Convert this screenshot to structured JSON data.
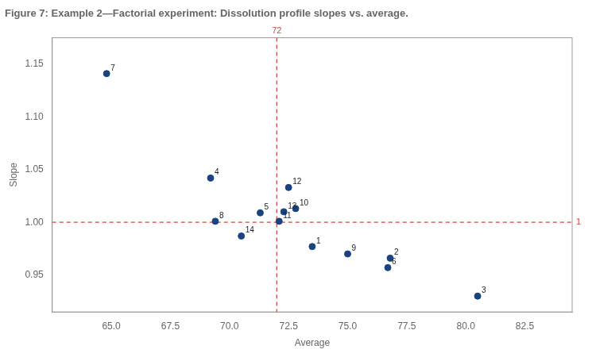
{
  "chart_data": {
    "type": "scatter",
    "title": "Figure 7: Example 2—Factorial experiment: Dissolution profile slopes vs. average.",
    "xlabel": "Average",
    "ylabel": "Slope",
    "x": [
      64.8,
      69.2,
      69.4,
      70.5,
      71.3,
      72.1,
      72.3,
      72.8,
      72.5,
      73.5,
      75.0,
      76.8,
      76.7,
      80.5
    ],
    "values": [
      1.141,
      1.042,
      1.001,
      0.987,
      1.009,
      1.001,
      1.01,
      1.013,
      1.033,
      0.977,
      0.97,
      0.966,
      0.957,
      0.93
    ],
    "point_labels": [
      "7",
      "4",
      "8",
      "14",
      "5",
      "11",
      "13",
      "10",
      "12",
      "1",
      "9",
      "2",
      "6",
      "3"
    ],
    "color": "#1a4480",
    "marker": "circle",
    "xlim": [
      62.5,
      84.5
    ],
    "ylim": [
      0.915,
      1.175
    ],
    "xticks": [
      {
        "value": 65.0,
        "label": "65.0"
      },
      67.5,
      {
        "value": 70.0,
        "label": "70.0"
      },
      72.5,
      {
        "value": 75.0,
        "label": "75.0"
      },
      77.5,
      {
        "value": 80.0,
        "label": "80.0"
      },
      82.5
    ],
    "yticks": [
      0.95,
      {
        "value": 1.0,
        "label": "1.00"
      },
      1.05,
      {
        "value": 1.1,
        "label": "1.10"
      },
      1.15
    ],
    "grid": false,
    "annotations": [
      {
        "type": "vline",
        "x": 72.0,
        "label": "72",
        "color": "#cd4a3f",
        "line_style": "dashed"
      },
      {
        "type": "hline",
        "y": 1.0,
        "label": "1",
        "color": "#cd4a3f",
        "line_style": "dashed"
      }
    ]
  }
}
